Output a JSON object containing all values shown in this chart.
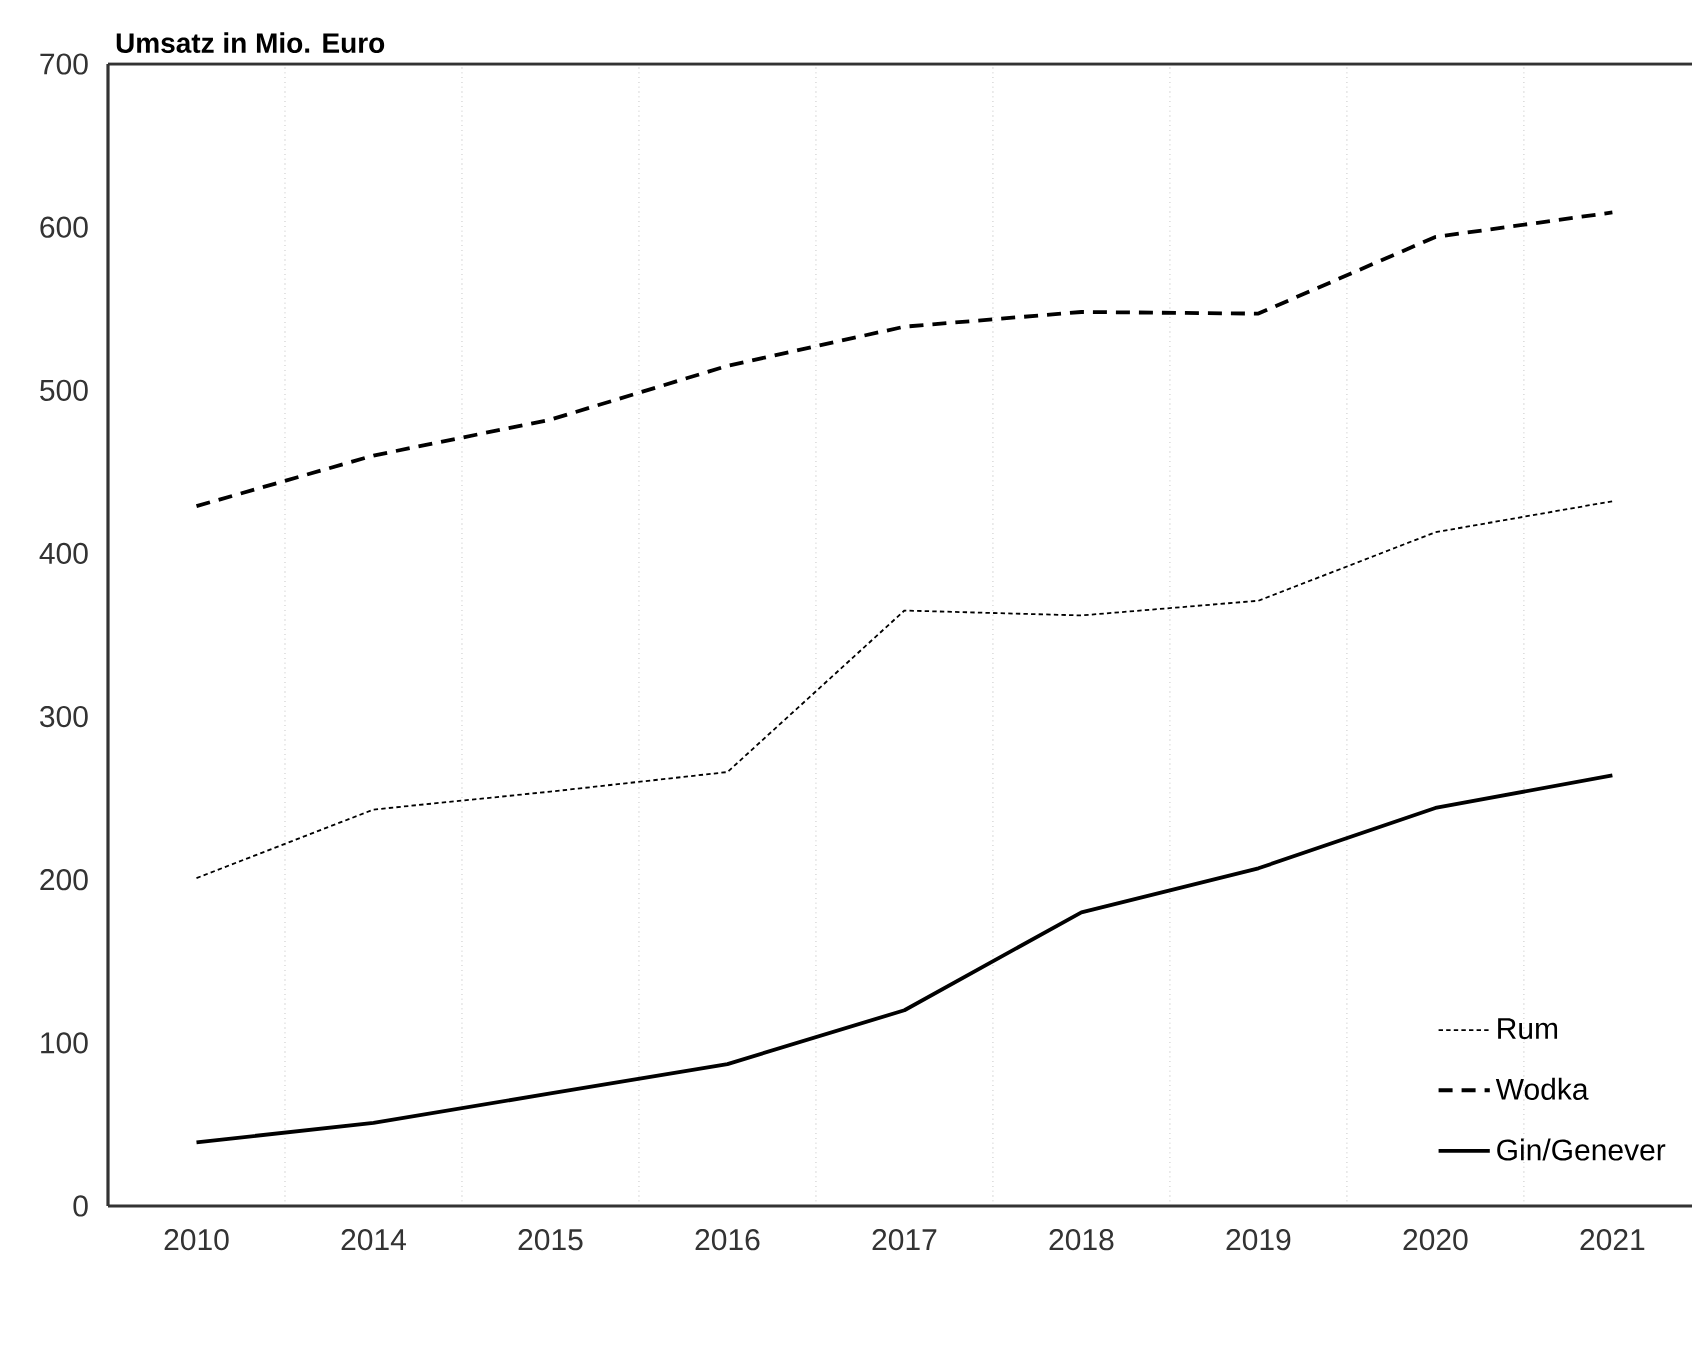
{
  "chart_data": {
    "type": "line",
    "ylabel": "Umsatz in Mio. Euro",
    "categories": [
      "2010",
      "2014",
      "2015",
      "2016",
      "2017",
      "2018",
      "2019",
      "2020",
      "2021"
    ],
    "series": [
      {
        "name": "Rum",
        "color": "#000000",
        "line_style": "dotted",
        "values": [
          201,
          243,
          254,
          266,
          365,
          362,
          371,
          413,
          432
        ]
      },
      {
        "name": "Wodka",
        "color": "#000000",
        "line_style": "dashed",
        "values": [
          429,
          460,
          482,
          515,
          539,
          548,
          547,
          594,
          609
        ]
      },
      {
        "name": "Gin/Genever",
        "color": "#000000",
        "line_style": "solid",
        "values": [
          39,
          51,
          69,
          87,
          120,
          180,
          207,
          244,
          264
        ]
      }
    ],
    "ylim": [
      0,
      700
    ],
    "yticks": [
      0,
      100,
      200,
      300,
      400,
      500,
      600,
      700
    ],
    "grid": "x",
    "legend": "bottom right",
    "marker": "none"
  }
}
